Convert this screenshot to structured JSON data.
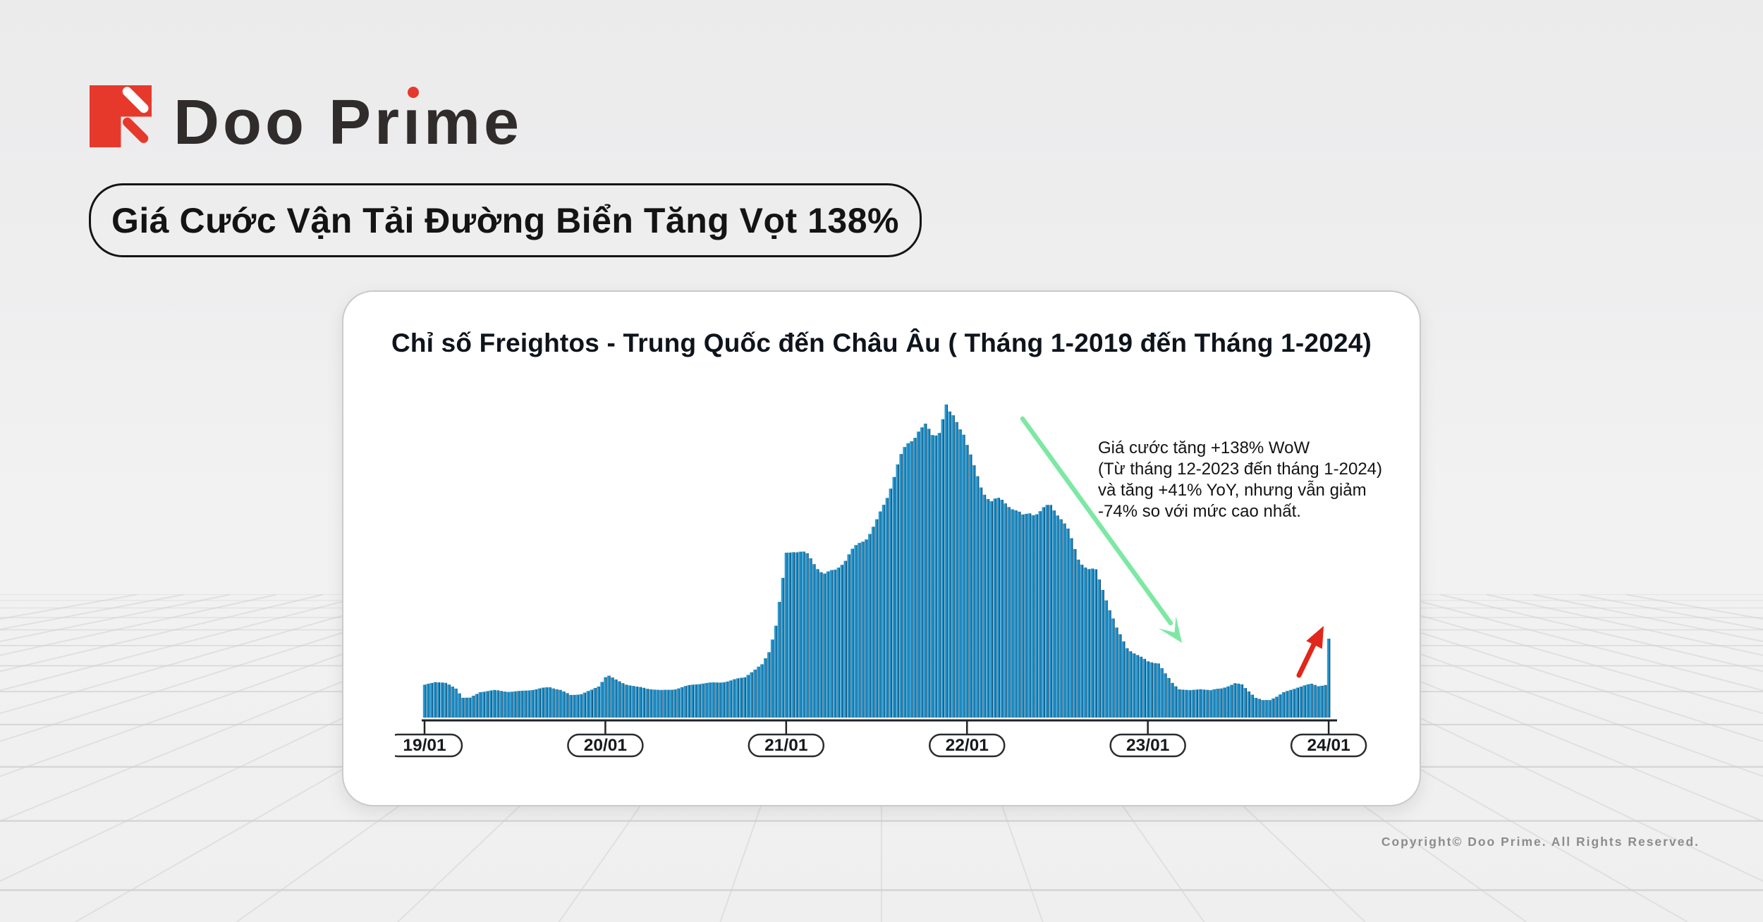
{
  "brand": {
    "logo_text": "Doo Prime",
    "logo_text_parts": {
      "pre": "Doo Pr",
      "dotless_i": "ı",
      "post": "me"
    },
    "colors": {
      "red": "#E6392C",
      "text": "#302C2C"
    }
  },
  "headline": {
    "text": "Giá Cước Vận Tải Đường Biển Tăng Vọt 138%"
  },
  "footer": {
    "copyright": "Copyright© Doo Prime. All Rights Reserved."
  },
  "chart_data": {
    "type": "bar",
    "title": "Chỉ số Freightos - Trung Quốc đến Châu Âu ( Tháng 1-2019 đến Tháng 1-2024)",
    "x_tick_labels": [
      "19/01",
      "20/01",
      "21/01",
      "22/01",
      "23/01",
      "24/01"
    ],
    "n_bars": 261,
    "bars_per_year": 52,
    "ylim": [
      0,
      15500
    ],
    "y_axis_visible": false,
    "grid": false,
    "legend": null,
    "values_unit": "USD (container freight index, estimated)",
    "bar_color": "#2196CD",
    "bar_edge_color": "#0F2D42",
    "envelope_keypoints": [
      [
        0,
        1590
      ],
      [
        3,
        1720
      ],
      [
        6,
        1660
      ],
      [
        9,
        1450
      ],
      [
        11,
        1000
      ],
      [
        13,
        980
      ],
      [
        16,
        1240
      ],
      [
        20,
        1310
      ],
      [
        24,
        1290
      ],
      [
        28,
        1320
      ],
      [
        32,
        1360
      ],
      [
        36,
        1470
      ],
      [
        39,
        1380
      ],
      [
        42,
        1120
      ],
      [
        45,
        1150
      ],
      [
        48,
        1320
      ],
      [
        50,
        1500
      ],
      [
        52,
        2000
      ],
      [
        53,
        2070
      ],
      [
        55,
        1880
      ],
      [
        58,
        1650
      ],
      [
        61,
        1480
      ],
      [
        64,
        1390
      ],
      [
        68,
        1350
      ],
      [
        72,
        1420
      ],
      [
        76,
        1550
      ],
      [
        80,
        1650
      ],
      [
        84,
        1750
      ],
      [
        88,
        1820
      ],
      [
        92,
        1950
      ],
      [
        95,
        2300
      ],
      [
        97,
        2600
      ],
      [
        99,
        3300
      ],
      [
        101,
        4600
      ],
      [
        103,
        6800
      ],
      [
        104,
        8000
      ],
      [
        106,
        8050
      ],
      [
        108,
        7950
      ],
      [
        110,
        7850
      ],
      [
        112,
        7600
      ],
      [
        115,
        7200
      ],
      [
        118,
        7250
      ],
      [
        121,
        7600
      ],
      [
        124,
        8200
      ],
      [
        127,
        8900
      ],
      [
        130,
        9800
      ],
      [
        133,
        10900
      ],
      [
        136,
        12100
      ],
      [
        139,
        13200
      ],
      [
        142,
        14200
      ],
      [
        144,
        14500
      ],
      [
        146,
        14100
      ],
      [
        148,
        14150
      ],
      [
        150,
        15000
      ],
      [
        151,
        14500
      ],
      [
        153,
        14200
      ],
      [
        155,
        13900
      ],
      [
        156,
        13400
      ],
      [
        158,
        12400
      ],
      [
        160,
        11550
      ],
      [
        163,
        10620
      ],
      [
        166,
        10380
      ],
      [
        169,
        10150
      ],
      [
        172,
        9930
      ],
      [
        174,
        10280
      ],
      [
        177,
        10180
      ],
      [
        180,
        10200
      ],
      [
        183,
        9600
      ],
      [
        185,
        9100
      ],
      [
        188,
        7950
      ],
      [
        191,
        7350
      ],
      [
        193,
        7170
      ],
      [
        195,
        6200
      ],
      [
        197,
        5170
      ],
      [
        199,
        4300
      ],
      [
        202,
        3480
      ],
      [
        205,
        3100
      ],
      [
        208,
        2750
      ],
      [
        211,
        2600
      ],
      [
        213,
        2100
      ],
      [
        215,
        1700
      ],
      [
        217,
        1420
      ],
      [
        220,
        1350
      ],
      [
        223,
        1400
      ],
      [
        226,
        1300
      ],
      [
        229,
        1420
      ],
      [
        231,
        1550
      ],
      [
        233,
        1700
      ],
      [
        235,
        1650
      ],
      [
        237,
        1300
      ],
      [
        239,
        950
      ],
      [
        241,
        830
      ],
      [
        243,
        850
      ],
      [
        245,
        1030
      ],
      [
        247,
        1250
      ],
      [
        249,
        1380
      ],
      [
        251,
        1500
      ],
      [
        253,
        1560
      ],
      [
        255,
        1610
      ],
      [
        257,
        1520
      ],
      [
        259,
        1590
      ],
      [
        260,
        3860
      ]
    ],
    "annotation": {
      "lines": [
        "Giá cước tăng +138% WoW",
        "(Từ tháng 12-2023 đến tháng 1-2024)",
        "và tăng +41% YoY, nhưng vẫn giảm",
        "-74% so với mức cao nhất."
      ]
    },
    "arrows": [
      {
        "meaning": "decline-from-peak",
        "color": "#7DE8A3",
        "from": [
          1450,
          594
        ],
        "to": [
          1660,
          884
        ],
        "tip": [
          1676,
          912
        ],
        "width": 6.5,
        "head": 36,
        "style": "chevron"
      },
      {
        "meaning": "jan-2024-spike",
        "color": "#E2261A",
        "from": [
          1842,
          958
        ],
        "to": [
          1867,
          906
        ],
        "tip": [
          1877,
          888
        ],
        "width": 7,
        "head": 30,
        "style": "solid"
      }
    ]
  }
}
